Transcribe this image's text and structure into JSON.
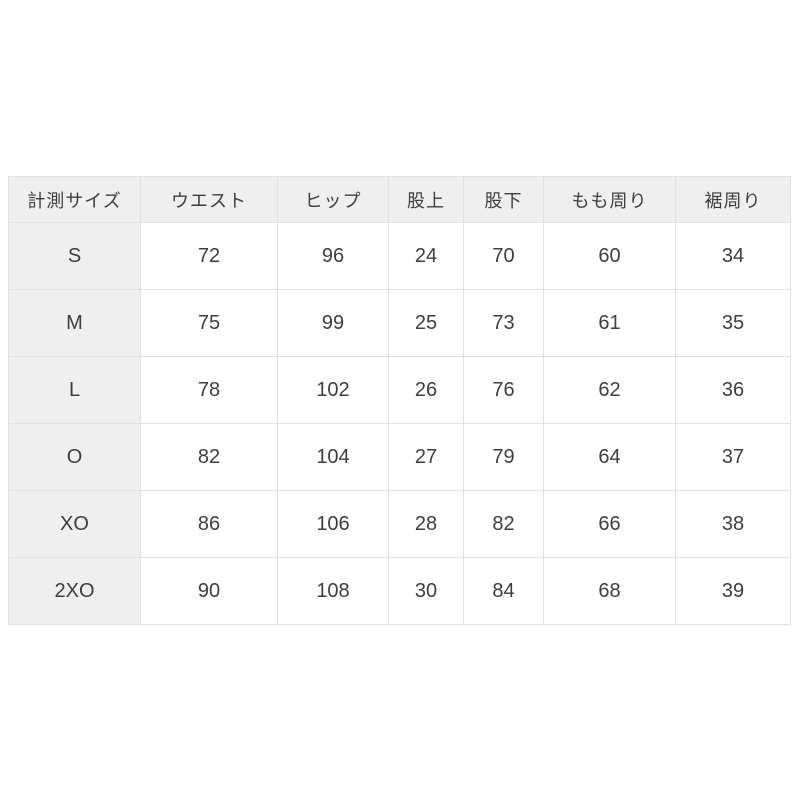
{
  "page": {
    "background_color": "#ffffff",
    "table_header_background": "#efefef",
    "table_border_color": "#e2e2e2",
    "text_color": "#3e3e3e"
  },
  "chart_data": {
    "type": "table",
    "title": "",
    "columns": [
      "計測サイズ",
      "ウエスト",
      "ヒップ",
      "股上",
      "股下",
      "もも周り",
      "裾周り"
    ],
    "rows": [
      [
        "S",
        "72",
        "96",
        "24",
        "70",
        "60",
        "34"
      ],
      [
        "M",
        "75",
        "99",
        "25",
        "73",
        "61",
        "35"
      ],
      [
        "L",
        "78",
        "102",
        "26",
        "76",
        "62",
        "36"
      ],
      [
        "O",
        "82",
        "104",
        "27",
        "79",
        "64",
        "37"
      ],
      [
        "XO",
        "86",
        "106",
        "28",
        "82",
        "66",
        "38"
      ],
      [
        "2XO",
        "90",
        "108",
        "30",
        "84",
        "68",
        "39"
      ]
    ]
  }
}
